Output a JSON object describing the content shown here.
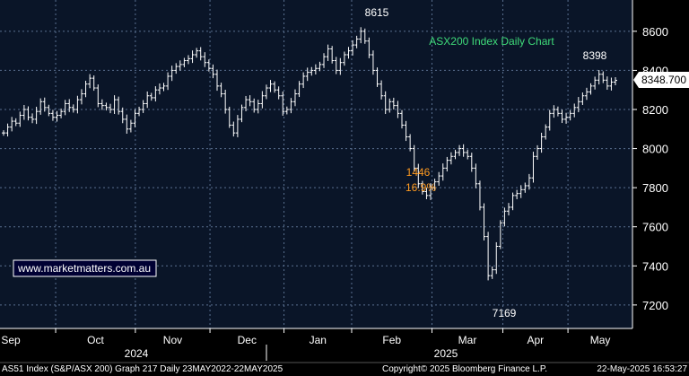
{
  "chart_data": {
    "type": "ohlc",
    "title": "ASX200 Index Daily Chart",
    "ylim": [
      7080,
      8760
    ],
    "yticks": [
      7200,
      7400,
      7600,
      7800,
      8000,
      8200,
      8400,
      8600
    ],
    "ytick_labels": [
      "7200",
      "7400",
      "7600",
      "7800",
      "8000",
      "8200",
      "8400",
      "8600"
    ],
    "x_month_labels": [
      "Sep",
      "Oct",
      "Nov",
      "Dec",
      "Jan",
      "Feb",
      "Mar",
      "Apr",
      "May"
    ],
    "year_labels": [
      "2024",
      "2025"
    ],
    "last_value_label": "8348.700",
    "last_value": 8348.7,
    "annotations": {
      "high": "8615",
      "low": "7169",
      "recent_high": "8398",
      "drop_points": "1446",
      "drop_pct": "16.9%"
    },
    "watermark": "www.marketmatters.com.au",
    "footer_left": "AS51 Index (S&P/ASX 200) Graph 217  Daily 23MAY2022-22MAY2025",
    "footer_center": "Copyright© 2025 Bloomberg Finance L.P.",
    "footer_right": "22-May-2025 16:53:27",
    "grid": true,
    "closes": [
      8080,
      8110,
      8140,
      8130,
      8170,
      8200,
      8160,
      8150,
      8190,
      8240,
      8210,
      8180,
      8160,
      8170,
      8190,
      8230,
      8210,
      8200,
      8250,
      8280,
      8330,
      8360,
      8310,
      8230,
      8220,
      8210,
      8200,
      8250,
      8190,
      8150,
      8100,
      8130,
      8180,
      8200,
      8230,
      8270,
      8260,
      8300,
      8310,
      8320,
      8370,
      8400,
      8420,
      8430,
      8450,
      8460,
      8480,
      8500,
      8470,
      8440,
      8410,
      8380,
      8320,
      8280,
      8200,
      8120,
      8080,
      8150,
      8210,
      8250,
      8240,
      8200,
      8230,
      8270,
      8310,
      8330,
      8300,
      8270,
      8190,
      8200,
      8240,
      8280,
      8330,
      8370,
      8390,
      8400,
      8410,
      8430,
      8470,
      8510,
      8450,
      8400,
      8440,
      8480,
      8500,
      8530,
      8560,
      8600,
      8550,
      8480,
      8400,
      8330,
      8270,
      8200,
      8240,
      8220,
      8180,
      8120,
      8060,
      8000,
      7900,
      7820,
      7780,
      7760,
      7800,
      7830,
      7860,
      7900,
      7940,
      7960,
      7980,
      8000,
      7980,
      7960,
      7900,
      7820,
      7700,
      7550,
      7350,
      7380,
      7500,
      7620,
      7680,
      7700,
      7760,
      7770,
      7790,
      7810,
      7850,
      7960,
      8000,
      8060,
      8110,
      8180,
      8200,
      8180,
      8150,
      8160,
      8180,
      8210,
      8240,
      8270,
      8290,
      8320,
      8350,
      8380,
      8350,
      8320,
      8340,
      8349
    ]
  }
}
